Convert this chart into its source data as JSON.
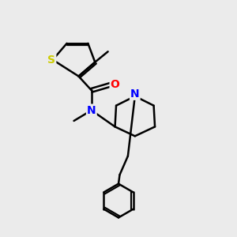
{
  "bg_color": "#ebebeb",
  "atom_colors": {
    "S": "#cccc00",
    "N": "#0000ff",
    "O": "#ff0000",
    "C": "#000000"
  },
  "bond_color": "#000000",
  "bond_width": 1.8,
  "font_size": 10,
  "fig_size": [
    3.0,
    3.0
  ],
  "dpi": 100
}
